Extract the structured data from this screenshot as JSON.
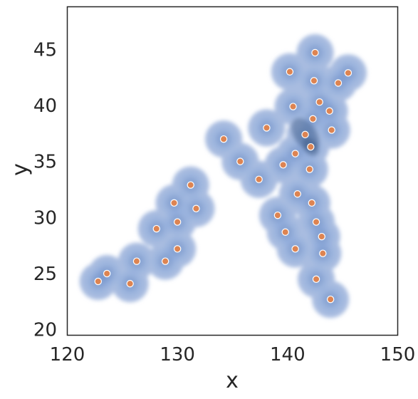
{
  "chart_data": {
    "type": "scatter",
    "title": "",
    "xlabel": "x",
    "ylabel": "y",
    "xlim": [
      120,
      150
    ],
    "ylim": [
      19.5,
      48.8
    ],
    "xticks": [
      "120",
      "130",
      "140",
      "150"
    ],
    "yticks": [
      "20",
      "25",
      "30",
      "35",
      "40",
      "45"
    ],
    "grid": false,
    "overlay": "filled kde density contours",
    "colors": {
      "points": "#dd8452",
      "point_edge": "#ffffff",
      "density_low": "#a8bce0",
      "density_mid": "#6f94d9",
      "density_high": "#4c72b0",
      "density_peak": "#3f5a86"
    },
    "series": [
      {
        "points": [
          [
            122.8,
            24.3
          ],
          [
            123.6,
            25.0
          ],
          [
            125.7,
            24.1
          ],
          [
            126.3,
            26.1
          ],
          [
            128.1,
            29.0
          ],
          [
            128.9,
            26.1
          ],
          [
            129.7,
            31.3
          ],
          [
            130.0,
            29.6
          ],
          [
            130.0,
            27.2
          ],
          [
            131.2,
            32.9
          ],
          [
            131.7,
            30.8
          ],
          [
            134.2,
            37.0
          ],
          [
            135.7,
            35.0
          ],
          [
            137.4,
            33.4
          ],
          [
            138.1,
            38.0
          ],
          [
            139.1,
            30.2
          ],
          [
            139.6,
            34.7
          ],
          [
            139.8,
            28.7
          ],
          [
            140.2,
            43.0
          ],
          [
            140.5,
            39.9
          ],
          [
            140.7,
            35.7
          ],
          [
            140.7,
            27.2
          ],
          [
            140.9,
            32.1
          ],
          [
            141.6,
            37.4
          ],
          [
            142.0,
            34.3
          ],
          [
            142.1,
            36.3
          ],
          [
            142.2,
            31.3
          ],
          [
            142.3,
            38.8
          ],
          [
            142.4,
            42.2
          ],
          [
            142.5,
            44.7
          ],
          [
            142.6,
            29.6
          ],
          [
            142.6,
            24.5
          ],
          [
            142.9,
            40.3
          ],
          [
            143.1,
            28.3
          ],
          [
            143.2,
            26.8
          ],
          [
            143.8,
            39.5
          ],
          [
            143.9,
            22.7
          ],
          [
            144.0,
            37.8
          ],
          [
            144.6,
            42.0
          ],
          [
            145.5,
            42.9
          ]
        ]
      }
    ]
  }
}
